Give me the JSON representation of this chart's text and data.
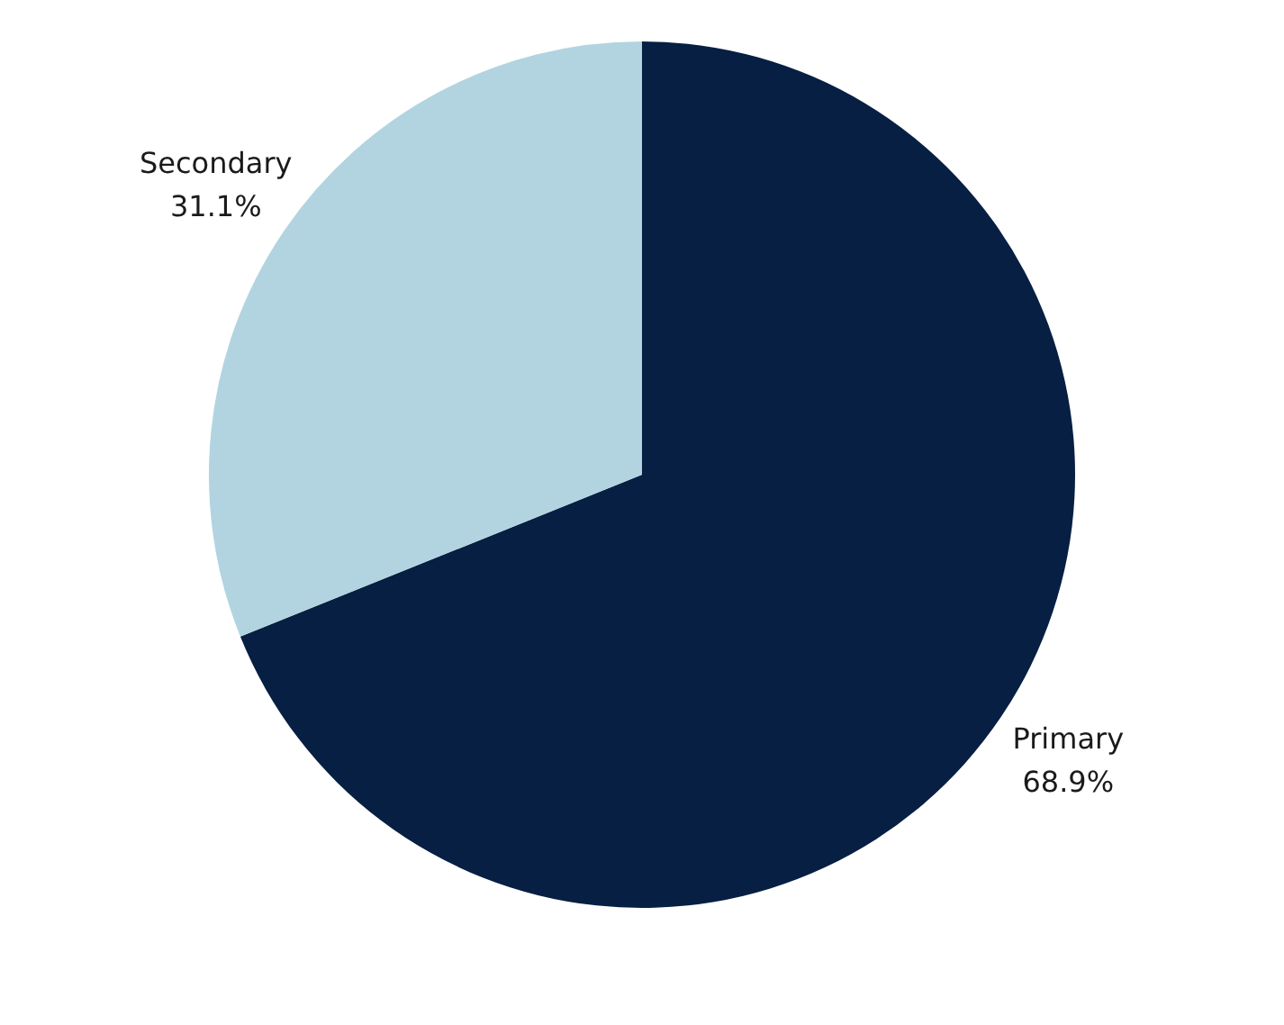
{
  "chart_data": {
    "type": "pie",
    "categories": [
      "Primary",
      "Secondary"
    ],
    "values": [
      68.9,
      31.1
    ],
    "colors": [
      "#061f42",
      "#b1d4e0"
    ],
    "value_labels": [
      "68.9%",
      "31.1%"
    ],
    "legend": false
  }
}
